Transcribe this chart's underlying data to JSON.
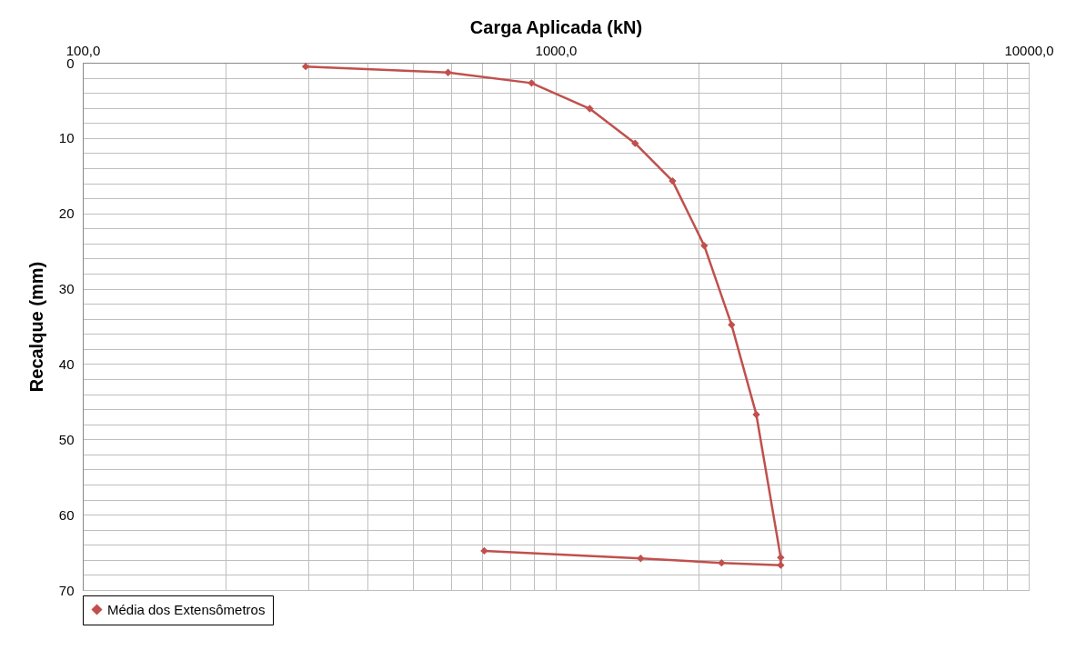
{
  "chart_data": {
    "type": "line",
    "xlabel": "Carga Aplicada (kN)",
    "ylabel": "Recalque (mm)",
    "log": "x",
    "xlim": [
      100,
      10000
    ],
    "xticks": [
      {
        "value": 100,
        "label": "100,0"
      },
      {
        "value": 200,
        "label": null
      },
      {
        "value": 300,
        "label": null
      },
      {
        "value": 400,
        "label": null
      },
      {
        "value": 500,
        "label": null
      },
      {
        "value": 600,
        "label": null
      },
      {
        "value": 700,
        "label": null
      },
      {
        "value": 800,
        "label": null
      },
      {
        "value": 900,
        "label": null
      },
      {
        "value": 1000,
        "label": "1000,0"
      },
      {
        "value": 2000,
        "label": null
      },
      {
        "value": 3000,
        "label": null
      },
      {
        "value": 4000,
        "label": null
      },
      {
        "value": 5000,
        "label": null
      },
      {
        "value": 6000,
        "label": null
      },
      {
        "value": 7000,
        "label": null
      },
      {
        "value": 8000,
        "label": null
      },
      {
        "value": 9000,
        "label": null
      },
      {
        "value": 10000,
        "label": "10000,0"
      }
    ],
    "ylim": [
      70,
      0
    ],
    "yticks": [
      0,
      {
        "value": 2,
        "label": null
      },
      {
        "value": 4,
        "label": null
      },
      {
        "value": 6,
        "label": null
      },
      {
        "value": 8,
        "label": null
      },
      10,
      {
        "value": 12,
        "label": null
      },
      {
        "value": 14,
        "label": null
      },
      {
        "value": 16,
        "label": null
      },
      {
        "value": 18,
        "label": null
      },
      20,
      {
        "value": 22,
        "label": null
      },
      {
        "value": 24,
        "label": null
      },
      {
        "value": 26,
        "label": null
      },
      {
        "value": 28,
        "label": null
      },
      30,
      {
        "value": 32,
        "label": null
      },
      {
        "value": 34,
        "label": null
      },
      {
        "value": 36,
        "label": null
      },
      {
        "value": 38,
        "label": null
      },
      40,
      {
        "value": 42,
        "label": null
      },
      {
        "value": 44,
        "label": null
      },
      {
        "value": 46,
        "label": null
      },
      {
        "value": 48,
        "label": null
      },
      50,
      {
        "value": 52,
        "label": null
      },
      {
        "value": 54,
        "label": null
      },
      {
        "value": 56,
        "label": null
      },
      {
        "value": 58,
        "label": null
      },
      60,
      {
        "value": 62,
        "label": null
      },
      {
        "value": 64,
        "label": null
      },
      {
        "value": 66,
        "label": null
      },
      {
        "value": 68,
        "label": null
      },
      70
    ],
    "grid": true,
    "legend": "bottom",
    "marker": "diamond",
    "line_style": "solid",
    "x": [
      296,
      592,
      889,
      1180,
      1472,
      1766,
      2061,
      2354,
      2655,
      2990,
      2990,
      2242,
      1512,
      706
    ],
    "series": [
      {
        "name": "Média dos Extensômetros",
        "color": "#c0504d",
        "values": [
          0.5,
          1.3,
          2.7,
          6.1,
          10.7,
          15.7,
          24.3,
          34.8,
          46.7,
          65.7,
          66.7,
          66.4,
          65.8,
          64.8
        ]
      }
    ]
  }
}
